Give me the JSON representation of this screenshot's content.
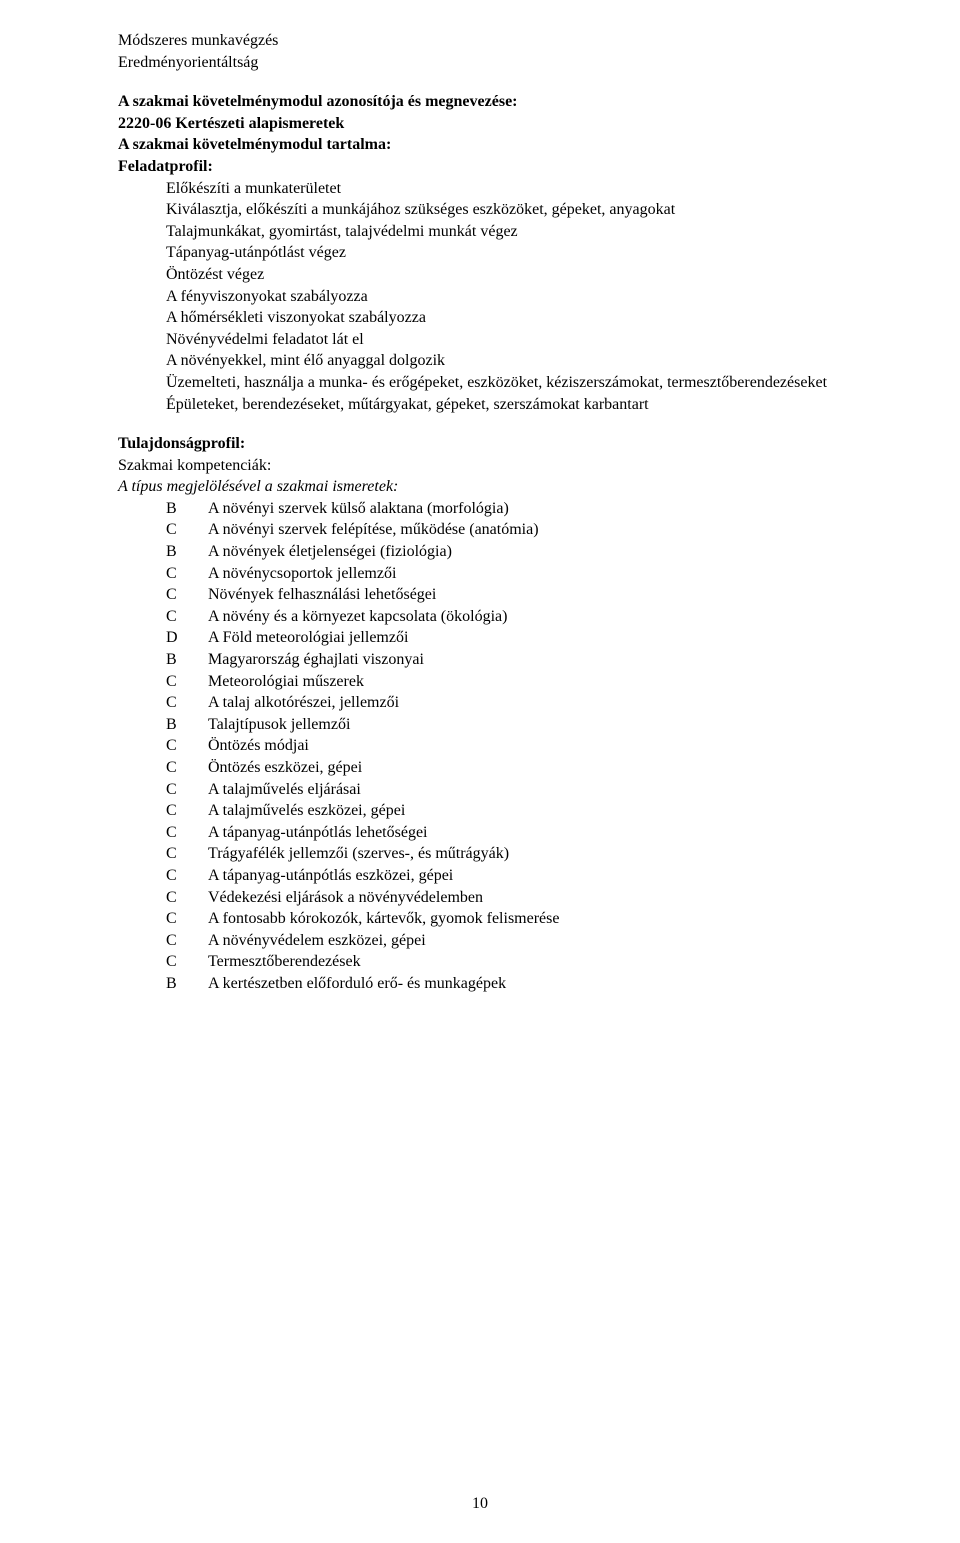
{
  "top_lines": [
    "Módszeres munkavégzés",
    "Eredményorientáltság"
  ],
  "spec_heading": "A szakmai követelménymodul azonosítója és megnevezése:",
  "spec_code_line": "2220-06 Kertészeti alapismeretek",
  "content_heading": "A szakmai követelménymodul tartalma:",
  "task_profile_heading": "Feladatprofil:",
  "tasks": [
    "Előkészíti a munkaterületet",
    "Kiválasztja, előkészíti a munkájához szükséges eszközöket, gépeket, anyagokat",
    "Talajmunkákat, gyomirtást, talajvédelmi munkát végez",
    "Tápanyag-utánpótlást végez",
    "Öntözést végez",
    "A fényviszonyokat szabályozza",
    "A hőmérsékleti viszonyokat szabályozza",
    "Növényvédelmi feladatot lát el",
    "A növényekkel, mint élő anyaggal dolgozik",
    "Üzemelteti, használja a munka- és erőgépeket, eszközöket, kéziszerszámokat, termesztőberendezéseket",
    "Épületeket, berendezéseket, műtárgyakat, gépeket, szerszámokat karbantart"
  ],
  "props_heading": "Tulajdonságprofil:",
  "comp_heading": "Szakmai kompetenciák:",
  "type_heading": "A típus megjelölésével a szakmai ismeretek:",
  "knowledge": [
    {
      "t": "B",
      "x": "A növényi szervek külső alaktana (morfológia)"
    },
    {
      "t": "C",
      "x": "A növényi szervek felépítése, működése (anatómia)"
    },
    {
      "t": "B",
      "x": "A növények életjelenségei (fiziológia)"
    },
    {
      "t": "C",
      "x": "A növénycsoportok jellemzői"
    },
    {
      "t": "C",
      "x": "Növények felhasználási lehetőségei"
    },
    {
      "t": "C",
      "x": "A növény és a környyezet kapcsolata (ökológia)"
    },
    {
      "t": "D",
      "x": "A Föld meteorológiai jellemzői"
    },
    {
      "t": "B",
      "x": "Magyarország éghajlati viszonyai"
    },
    {
      "t": "C",
      "x": "Meteorológiai műszerek"
    },
    {
      "t": "C",
      "x": "A talaj alkotórészei, jellemzői"
    },
    {
      "t": "B",
      "x": "Talajtípusok jellemzői"
    },
    {
      "t": "C",
      "x": "Öntözés módjai"
    },
    {
      "t": "C",
      "x": "Öntözés eszközei, gépei"
    },
    {
      "t": "C",
      "x": "A talajművelés eljárásai"
    },
    {
      "t": "C",
      "x": "A talajművelés eszközei, gépei"
    },
    {
      "t": "C",
      "x": "A tápanyag-utánpótlás lehetőségei"
    },
    {
      "t": "C",
      "x": "Trágyafélék jellemzői (szerves-, és műtrágyák)"
    },
    {
      "t": "C",
      "x": "A tápanyag-utánpótlás eszközei, gépei"
    },
    {
      "t": "C",
      "x": "Védekezési eljárások a növényvédelemben"
    },
    {
      "t": "C",
      "x": "A fontosabb kórokozók, kártevők, gyomok felismerése"
    },
    {
      "t": "C",
      "x": "A növényvédelem eszközei, gépei"
    },
    {
      "t": "C",
      "x": "Termesztőberendezések"
    },
    {
      "t": "B",
      "x": "A kertészetben előforduló erő- és munkagépek"
    }
  ],
  "knowledge_fix": {
    "5": "A növény és a környezet kapcsolata (ökológia)"
  },
  "page_number": "10"
}
